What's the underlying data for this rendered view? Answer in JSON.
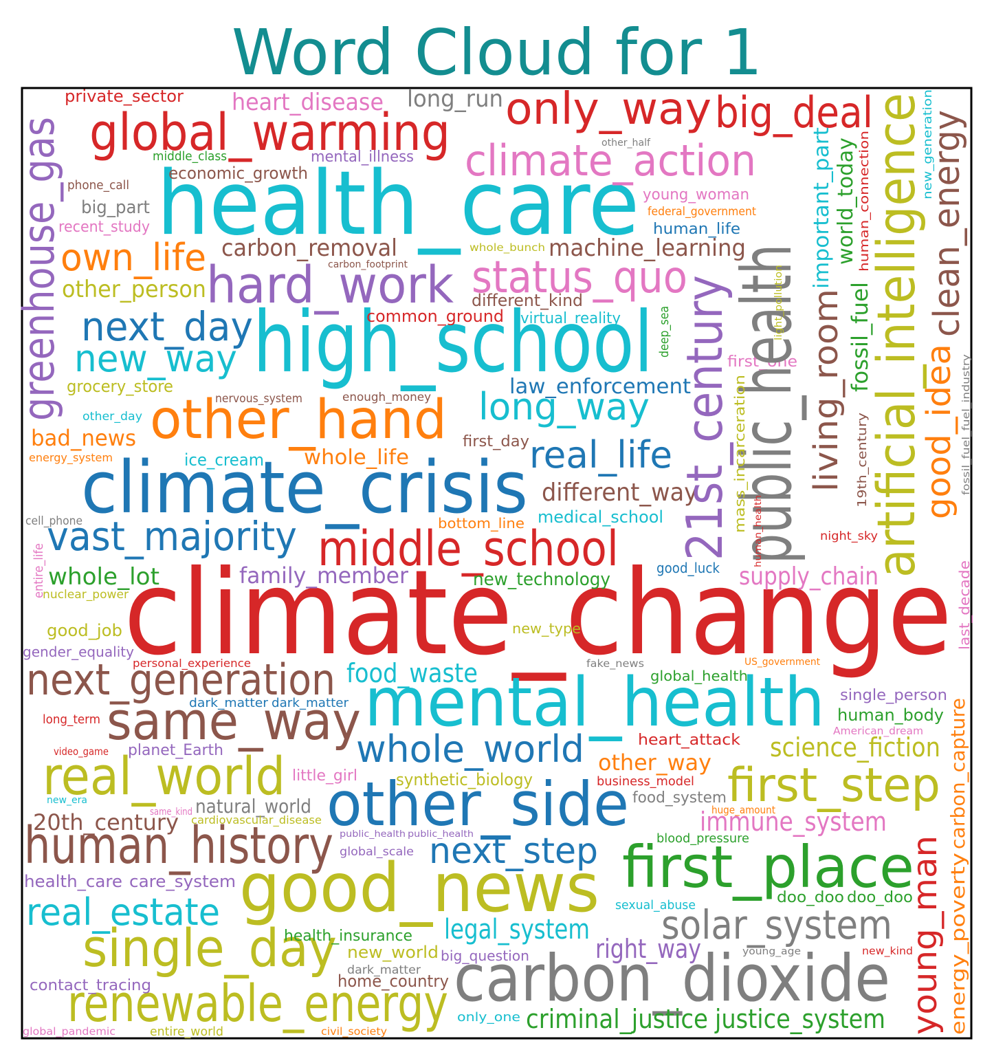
{
  "chart_data": {
    "type": "wordcloud",
    "title": "Word Cloud for 1",
    "title_color": "#138d90",
    "words": [
      {
        "text": "climate_change",
        "color": "#d62728"
      },
      {
        "text": "health_care",
        "color": "#17becf"
      },
      {
        "text": "high_school",
        "color": "#17becf"
      },
      {
        "text": "climate_crisis",
        "color": "#1f77b4"
      },
      {
        "text": "mental_health",
        "color": "#17becf"
      },
      {
        "text": "good_news",
        "color": "#bcbd22"
      },
      {
        "text": "carbon_dioxide",
        "color": "#7f7f7f"
      },
      {
        "text": "other_side",
        "color": "#1f77b4"
      },
      {
        "text": "first_place",
        "color": "#2ca02c"
      },
      {
        "text": "other_hand",
        "color": "#ff7f0e"
      },
      {
        "text": "global_warming",
        "color": "#d62728"
      },
      {
        "text": "same_way",
        "color": "#8c564b"
      },
      {
        "text": "real_world",
        "color": "#bcbd22"
      },
      {
        "text": "human_history",
        "color": "#8c564b"
      },
      {
        "text": "single_day",
        "color": "#bcbd22"
      },
      {
        "text": "renewable_energy",
        "color": "#bcbd22"
      },
      {
        "text": "hard_work",
        "color": "#9467bd"
      },
      {
        "text": "middle_school",
        "color": "#d62728"
      },
      {
        "text": "climate_action",
        "color": "#e377c2"
      },
      {
        "text": "only_way",
        "color": "#d62728"
      },
      {
        "text": "big_deal",
        "color": "#d62728"
      },
      {
        "text": "status_quo",
        "color": "#e377c2"
      },
      {
        "text": "next_generation",
        "color": "#8c564b"
      },
      {
        "text": "first_step",
        "color": "#bcbd22"
      },
      {
        "text": "solar_system",
        "color": "#7f7f7f"
      },
      {
        "text": "vast_majority",
        "color": "#1f77b4"
      },
      {
        "text": "next_day",
        "color": "#1f77b4"
      },
      {
        "text": "new_way",
        "color": "#17becf"
      },
      {
        "text": "own_life",
        "color": "#ff7f0e"
      },
      {
        "text": "long_way",
        "color": "#17becf"
      },
      {
        "text": "real_life",
        "color": "#1f77b4"
      },
      {
        "text": "whole_world",
        "color": "#1f77b4"
      },
      {
        "text": "real_estate",
        "color": "#17becf"
      },
      {
        "text": "next_step",
        "color": "#1f77b4"
      },
      {
        "text": "legal_system",
        "color": "#17becf"
      },
      {
        "text": "right_way",
        "color": "#9467bd"
      },
      {
        "text": "criminal_justice",
        "color": "#2ca02c"
      },
      {
        "text": "justice_system",
        "color": "#2ca02c"
      },
      {
        "text": "science_fiction",
        "color": "#bcbd22"
      },
      {
        "text": "immune_system",
        "color": "#e377c2"
      },
      {
        "text": "supply_chain",
        "color": "#e377c2"
      },
      {
        "text": "food_waste",
        "color": "#17becf"
      },
      {
        "text": "different_way",
        "color": "#8c564b"
      },
      {
        "text": "machine_learning",
        "color": "#8c564b"
      },
      {
        "text": "carbon_removal",
        "color": "#8c564b"
      },
      {
        "text": "other_person",
        "color": "#bcbd22"
      },
      {
        "text": "heart_disease",
        "color": "#e377c2"
      },
      {
        "text": "long_run",
        "color": "#7f7f7f"
      },
      {
        "text": "law_enforcement",
        "color": "#1f77b4"
      },
      {
        "text": "whole_lot",
        "color": "#2ca02c"
      },
      {
        "text": "family_member",
        "color": "#9467bd"
      },
      {
        "text": "bad_news",
        "color": "#ff7f0e"
      },
      {
        "text": "whole_life",
        "color": "#ff7f0e"
      },
      {
        "text": "other_way",
        "color": "#ff7f0e"
      },
      {
        "text": "20th_century",
        "color": "#8c564b"
      },
      {
        "text": "natural_world",
        "color": "#7f7f7f"
      },
      {
        "text": "private_sector",
        "color": "#d62728"
      },
      {
        "text": "economic_growth",
        "color": "#8c564b"
      },
      {
        "text": "mental_illness",
        "color": "#9467bd"
      },
      {
        "text": "middle_class",
        "color": "#2ca02c"
      },
      {
        "text": "phone_call",
        "color": "#8c564b"
      },
      {
        "text": "big_part",
        "color": "#7f7f7f"
      },
      {
        "text": "recent_study",
        "color": "#e377c2"
      },
      {
        "text": "grocery_store",
        "color": "#bcbd22"
      },
      {
        "text": "nervous_system",
        "color": "#8c564b"
      },
      {
        "text": "enough_money",
        "color": "#8c564b"
      },
      {
        "text": "other_day",
        "color": "#17becf"
      },
      {
        "text": "energy_system",
        "color": "#ff7f0e"
      },
      {
        "text": "ice_cream",
        "color": "#17becf"
      },
      {
        "text": "first_day",
        "color": "#8c564b"
      },
      {
        "text": "common_ground",
        "color": "#d62728"
      },
      {
        "text": "virtual_reality",
        "color": "#17becf"
      },
      {
        "text": "different_kind",
        "color": "#8c564b"
      },
      {
        "text": "carbon_footprint",
        "color": "#8c564b"
      },
      {
        "text": "whole_bunch",
        "color": "#bcbd22"
      },
      {
        "text": "other_half",
        "color": "#7f7f7f"
      },
      {
        "text": "young_woman",
        "color": "#e377c2"
      },
      {
        "text": "federal_government",
        "color": "#ff7f0e"
      },
      {
        "text": "human_life",
        "color": "#1f77b4"
      },
      {
        "text": "cell_phone",
        "color": "#7f7f7f"
      },
      {
        "text": "bottom_line",
        "color": "#ff7f0e"
      },
      {
        "text": "medical_school",
        "color": "#17becf"
      },
      {
        "text": "new_technology",
        "color": "#2ca02c"
      },
      {
        "text": "good_luck",
        "color": "#1f77b4"
      },
      {
        "text": "nuclear_power",
        "color": "#bcbd22"
      },
      {
        "text": "good_job",
        "color": "#bcbd22"
      },
      {
        "text": "new_type",
        "color": "#bcbd22"
      },
      {
        "text": "gender_equality",
        "color": "#9467bd"
      },
      {
        "text": "personal_experience",
        "color": "#d62728"
      },
      {
        "text": "fake_news",
        "color": "#7f7f7f"
      },
      {
        "text": "US_government",
        "color": "#ff7f0e"
      },
      {
        "text": "global_health",
        "color": "#2ca02c"
      },
      {
        "text": "single_person",
        "color": "#9467bd"
      },
      {
        "text": "human_body",
        "color": "#2ca02c"
      },
      {
        "text": "American_dream",
        "color": "#e377c2"
      },
      {
        "text": "dark_matter",
        "color": "#1f77b4"
      },
      {
        "text": "dark_matter",
        "color": "#1f77b4"
      },
      {
        "text": "long_term",
        "color": "#d62728"
      },
      {
        "text": "video_game",
        "color": "#d62728"
      },
      {
        "text": "planet_Earth",
        "color": "#9467bd"
      },
      {
        "text": "heart_attack",
        "color": "#d62728"
      },
      {
        "text": "little_girl",
        "color": "#e377c2"
      },
      {
        "text": "synthetic_biology",
        "color": "#bcbd22"
      },
      {
        "text": "business_model",
        "color": "#d62728"
      },
      {
        "text": "new_era",
        "color": "#17becf"
      },
      {
        "text": "same_kind",
        "color": "#e377c2"
      },
      {
        "text": "food_system",
        "color": "#7f7f7f"
      },
      {
        "text": "huge_amount",
        "color": "#ff7f0e"
      },
      {
        "text": "cardiovascular_disease",
        "color": "#bcbd22"
      },
      {
        "text": "public_health",
        "color": "#9467bd"
      },
      {
        "text": "public_health",
        "color": "#9467bd"
      },
      {
        "text": "blood_pressure",
        "color": "#2ca02c"
      },
      {
        "text": "global_scale",
        "color": "#9467bd"
      },
      {
        "text": "health_care",
        "color": "#9467bd"
      },
      {
        "text": "care_system",
        "color": "#9467bd"
      },
      {
        "text": "sexual_abuse",
        "color": "#17becf"
      },
      {
        "text": "doo_doo",
        "color": "#2ca02c"
      },
      {
        "text": "doo_doo",
        "color": "#2ca02c"
      },
      {
        "text": "health_insurance",
        "color": "#2ca02c"
      },
      {
        "text": "new_world",
        "color": "#bcbd22"
      },
      {
        "text": "big_question",
        "color": "#9467bd"
      },
      {
        "text": "young_age",
        "color": "#7f7f7f"
      },
      {
        "text": "new_kind",
        "color": "#d62728"
      },
      {
        "text": "dark_matter",
        "color": "#7f7f7f"
      },
      {
        "text": "home_country",
        "color": "#8c564b"
      },
      {
        "text": "contact_tracing",
        "color": "#9467bd"
      },
      {
        "text": "only_one",
        "color": "#17becf"
      },
      {
        "text": "global_pandemic",
        "color": "#e377c2"
      },
      {
        "text": "entire_world",
        "color": "#bcbd22"
      },
      {
        "text": "civil_society",
        "color": "#ff7f0e"
      },
      {
        "text": "night_sky",
        "color": "#d62728"
      },
      {
        "text": "first_one",
        "color": "#e377c2"
      },
      {
        "text": "public_health",
        "color": "#7f7f7f"
      },
      {
        "text": "artificial_intelligence",
        "color": "#bcbd22"
      },
      {
        "text": "21st_century",
        "color": "#9467bd"
      },
      {
        "text": "greenhouse_gas",
        "color": "#9467bd"
      },
      {
        "text": "clean_energy",
        "color": "#8c564b"
      },
      {
        "text": "good_idea",
        "color": "#ff7f0e"
      },
      {
        "text": "living_room",
        "color": "#8c564b"
      },
      {
        "text": "fossil_fuel",
        "color": "#2ca02c"
      },
      {
        "text": "world_today",
        "color": "#2ca02c"
      },
      {
        "text": "important_part",
        "color": "#17becf"
      },
      {
        "text": "human_connection",
        "color": "#d62728"
      },
      {
        "text": "new_generation",
        "color": "#17becf"
      },
      {
        "text": "fossil_fuel_fuel_industry",
        "color": "#7f7f7f"
      },
      {
        "text": "19th_century",
        "color": "#8c564b"
      },
      {
        "text": "mass_incarceration",
        "color": "#bcbd22"
      },
      {
        "text": "human_health",
        "color": "#d62728"
      },
      {
        "text": "light_pollution",
        "color": "#bcbd22"
      },
      {
        "text": "deep_sea",
        "color": "#2ca02c"
      },
      {
        "text": "entire_life",
        "color": "#e377c2"
      },
      {
        "text": "last_decade",
        "color": "#e377c2"
      },
      {
        "text": "carbon_capture",
        "color": "#ff7f0e"
      },
      {
        "text": "energy_poverty",
        "color": "#ff7f0e"
      },
      {
        "text": "young_man",
        "color": "#d62728"
      }
    ]
  }
}
